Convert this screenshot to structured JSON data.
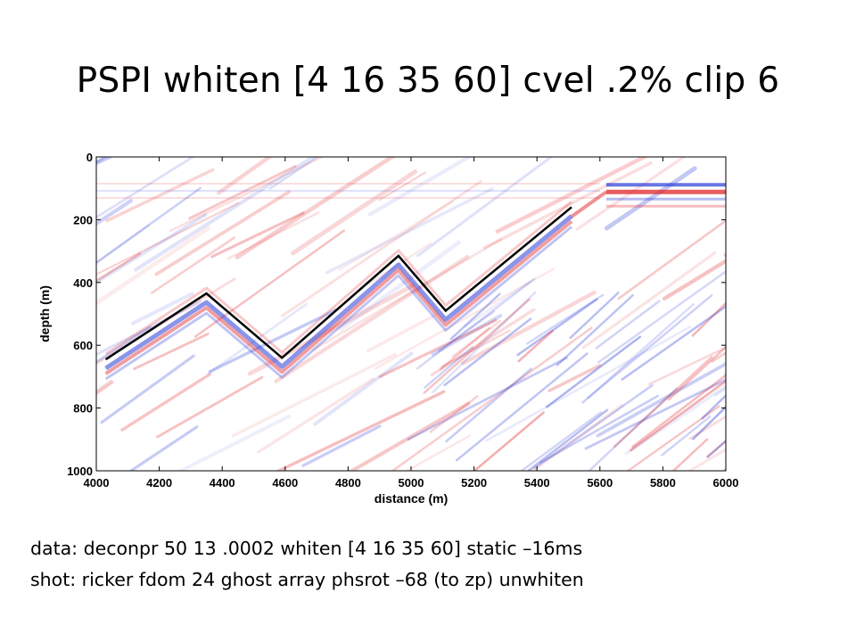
{
  "title": "PSPI whiten [4 16 35 60] cvel .2% clip 6",
  "captions": [
    "data: deconpr 50 13 .0002  whiten [4 16 35 60] static –16ms",
    "shot: ricker fdom 24 ghost array phsrot –68 (to zp) unwhiten"
  ],
  "chart_data": {
    "type": "heatmap",
    "xlabel": "distance (m)",
    "ylabel": "depth (m)",
    "xlim": [
      4000,
      6000
    ],
    "ylim": [
      1000,
      0
    ],
    "y_inverted": true,
    "xticks": [
      4000,
      4200,
      4400,
      4600,
      4800,
      5000,
      5200,
      5400,
      5600,
      5800,
      6000
    ],
    "yticks": [
      0,
      200,
      400,
      600,
      800,
      1000
    ],
    "colormap": "blue-white-red seismic",
    "colors": {
      "positive": "#e0262a",
      "negative": "#2a3cd6",
      "interpretation_line": "#000000"
    },
    "interpreted_horizon": [
      {
        "x": 4030,
        "y": 645
      },
      {
        "x": 4350,
        "y": 435
      },
      {
        "x": 4590,
        "y": 640
      },
      {
        "x": 4960,
        "y": 315
      },
      {
        "x": 5110,
        "y": 490
      },
      {
        "x": 5510,
        "y": 160
      }
    ],
    "flat_reflector": {
      "x_start": 5620,
      "x_end": 6000,
      "y": 100
    }
  }
}
